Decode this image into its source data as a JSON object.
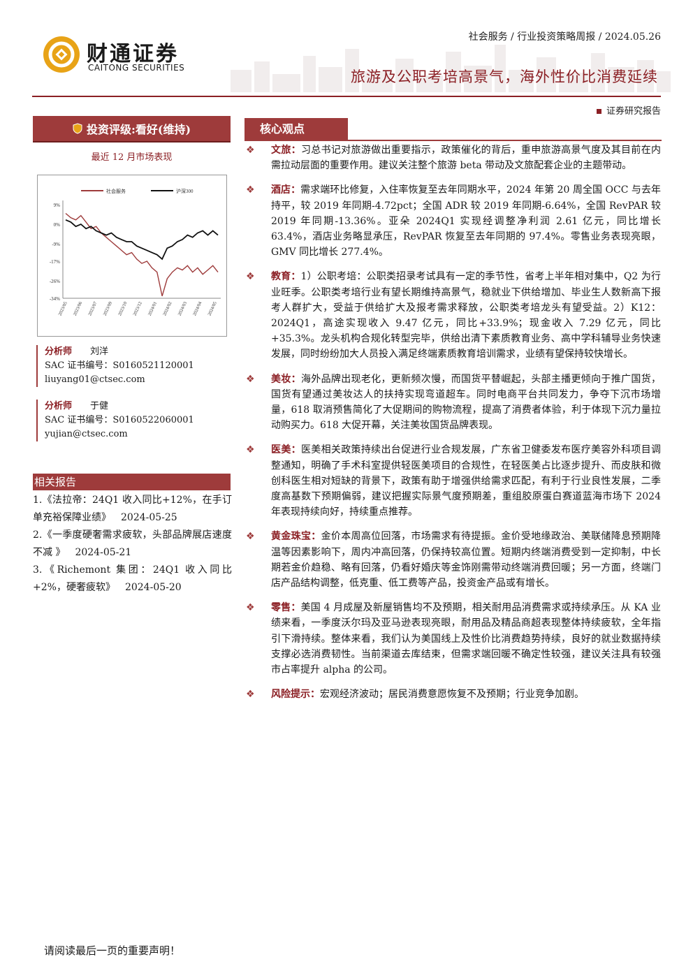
{
  "header": {
    "logo_cn": "财通证券",
    "logo_en": "CAITONG SECURITIES",
    "meta": "社会服务 / 行业投资策略周报 / 2024.05.26",
    "title": "旅游及公职考培高景气，海外性价比消费延续",
    "report_type": "证券研究报告"
  },
  "sidebar": {
    "rating": "投资评级:看好(维持)",
    "perf_caption": "最近 12 月市场表现",
    "analysts": [
      {
        "role": "分析师",
        "name": "刘洋",
        "sac": "SAC 证书编号：S0160521120001",
        "email": "liuyang01@ctsec.com"
      },
      {
        "role": "分析师",
        "name": "于健",
        "sac": "SAC 证书编号：S0160522060001",
        "email": "yujian@ctsec.com"
      }
    ],
    "related_title": "相关报告",
    "related": [
      {
        "text": "1.《法拉帝：24Q1 收入同比+12%，在手订单充裕保障业绩》",
        "date": "2024-05-25"
      },
      {
        "text": "2.《一季度硬奢需求疲软，头部品牌展店速度不减 》",
        "date": "2024-05-21"
      },
      {
        "text": "3.《Richemont 集团：24Q1 收入同比+2%，硬奢疲软》",
        "date": "2024-05-20"
      }
    ]
  },
  "chart_data": {
    "type": "line",
    "legend": [
      "社会服务",
      "沪深300"
    ],
    "legend_position": "top",
    "y_ticks": [
      "9%",
      "0%",
      "-9%",
      "-17%",
      "-26%",
      "-34%"
    ],
    "ylim": [
      -34,
      9
    ],
    "x_ticks": [
      "2023/05",
      "2023/06",
      "2023/07",
      "2023/09",
      "2023/10",
      "2023/12",
      "2024/01",
      "2024/02",
      "2024/03",
      "2024/04",
      "2024/05"
    ],
    "series": [
      {
        "name": "社会服务",
        "color": "#9e3b3b",
        "values": [
          5,
          3,
          2,
          4,
          1,
          -2,
          -1,
          -4,
          -6,
          -8,
          -10,
          -12,
          -14,
          -13,
          -16,
          -18,
          -17,
          -20,
          -22,
          -33,
          -25,
          -22,
          -20,
          -21,
          -19,
          -22,
          -20,
          -23,
          -21,
          -19,
          -22
        ]
      },
      {
        "name": "沪深300",
        "color": "#111111",
        "values": [
          2,
          1,
          -1,
          0,
          -2,
          -1,
          -3,
          -4,
          -5,
          -4,
          -6,
          -7,
          -8,
          -8,
          -10,
          -11,
          -12,
          -13,
          -14,
          -16,
          -11,
          -10,
          -8,
          -7,
          -5,
          -6,
          -4,
          -3,
          -5,
          -3,
          -5
        ]
      }
    ]
  },
  "core": {
    "title": "核心观点",
    "points": [
      {
        "label": "文旅：",
        "text": "习总书记对旅游做出重要指示，政策催化的背后，重申旅游高景气度及其目前在内需拉动层面的重要作用。建议关注整个旅游 beta 带动及文旅配套企业的主题带动。"
      },
      {
        "label": "酒店：",
        "text": "需求端环比修复，入住率恢复至去年同期水平，2024 年第 20 周全国 OCC 与去年持平，较 2019 年同期-4.72pct；全国 ADR 较 2019 年同期-6.64%，全国 RevPAR 较 2019 年同期-13.36%。亚朵 2024Q1 实现经调整净利润 2.61 亿元，同比增长 63.4%，酒店业务略显承压，RevPAR 恢复至去年同期的 97.4%。零售业务表现亮眼，GMV 同比增长 277.4%。"
      },
      {
        "label": "教育：",
        "text": "1）公职考培：公职类招录考试具有一定的季节性，省考上半年相对集中，Q2 为行业旺季。公职类考培行业有望长期维持高景气，稳就业下供给增加、毕业生人数新高下报考人群扩大，受益于供给扩大及报考需求释放，公职类考培龙头有望受益。2）K12：2024Q1，高途实现收入 9.47 亿元，同比+33.9%；现金收入 7.29 亿元，同比+35.3%。龙头机构合规化转型完毕，供给出清下素质教育业务、高中学科辅导业务快速发展，同时纷纷加大人员投入满足终端素质教育培训需求，业绩有望保持较快增长。"
      },
      {
        "label": "美妆：",
        "text": "海外品牌出现老化，更新频次慢，而国货平替崛起，头部主播更倾向于推广国货，国货有望通过美妆达人的扶持实现弯道超车。同时电商平台共同发力，争夺下沉市场增量，618 取消预售简化了大促期间的购物流程，提高了消费者体验，利于体现下沉力量拉动购买力。618 大促开幕，关注美妆国货品牌表现。"
      },
      {
        "label": "医美：",
        "text": "医美相关政策持续出台促进行业合规发展，广东省卫健委发布医疗美容外科项目调整通知，明确了手术科室提供轻医美项目的合规性，在轻医美占比逐步提升、而皮肤和微创科医生相对短缺的背景下，政策有助于增强供给需求匹配，有利于行业良性发展，二季度高基数下预期偏弱，建议把握实际景气度预期差，重组胶原蛋白赛道蓝海市场下 2024 年表现持续向好，持续重点推荐。"
      },
      {
        "label": "黄金珠宝：",
        "text": "金价本周高位回落，市场需求有待提振。金价受地缘政治、美联储降息预期降温等因素影响下，周内冲高回落，仍保持较高位置。短期内终端消费受到一定抑制，中长期若金价趋稳、略有回落，仍看好婚庆等金饰刚需带动终端消费回暖；另一方面，终端门店产品结构调整，低克重、低工费等产品，投资金产品或有增长。"
      },
      {
        "label": "零售：",
        "text": "美国 4 月成屋及新屋销售均不及预期，相关耐用品消费需求或持续承压。从 KA 业绩来看，一季度沃尔玛及亚马逊表现亮眼，耐用品及精品商超表现整体持续疲软，全年指引下滑持续。整体来看，我们认为美国线上及性价比消费趋势持续，良好的就业数据持续支撑必选消费韧性。当前渠道去库结束，但需求端回暖不确定性较强，建议关注具有较强市占率提升 alpha 的公司。"
      },
      {
        "label": "风险提示：",
        "text": "宏观经济波动；居民消费意愿恢复不及预期；行业竞争加剧。"
      }
    ]
  },
  "footer": {
    "note": "请阅读最后一页的重要声明！"
  },
  "colors": {
    "brand": "#9e3b3b",
    "brand_dark": "#8b1f24",
    "logo_gold": "#e8a317"
  }
}
